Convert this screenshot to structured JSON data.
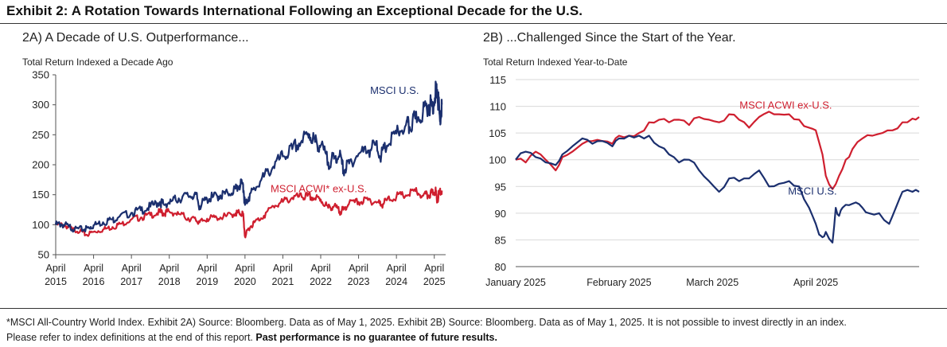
{
  "exhibit_title": "Exhibit 2: A Rotation Towards International Following an Exceptional Decade for the U.S.",
  "footnote": {
    "line1": "*MSCI All-Country World Index. Exhibit 2A) Source: Bloomberg. Data as of May 1, 2025. Exhibit 2B) Source: Bloomberg. Data as of May 1, 2025. It is not possible to invest directly in an index.",
    "line2_plain": "Please refer to index definitions at the end of this report.",
    "line2_bold": "Past performance is no guarantee of future results."
  },
  "colors": {
    "us": "#1b2f6e",
    "intl": "#cf1f2f",
    "axis": "#555555",
    "text": "#222222"
  },
  "chart_data": [
    {
      "type": "line",
      "title": "2A) A Decade of U.S. Outperformance...",
      "ylabel": "Total Return Indexed a Decade Ago",
      "ylim": [
        50,
        350
      ],
      "yticks": [
        50,
        100,
        150,
        200,
        250,
        300,
        350
      ],
      "xlim": [
        2015.25,
        2025.55
      ],
      "xticks": [
        {
          "x": 2015.25,
          "top": "April",
          "bottom": "2015"
        },
        {
          "x": 2016.25,
          "top": "April",
          "bottom": "2016"
        },
        {
          "x": 2017.25,
          "top": "April",
          "bottom": "2017"
        },
        {
          "x": 2018.25,
          "top": "April",
          "bottom": "2018"
        },
        {
          "x": 2019.25,
          "top": "April",
          "bottom": "2019"
        },
        {
          "x": 2020.25,
          "top": "April",
          "bottom": "2020"
        },
        {
          "x": 2021.25,
          "top": "April",
          "bottom": "2021"
        },
        {
          "x": 2022.25,
          "top": "April",
          "bottom": "2022"
        },
        {
          "x": 2023.25,
          "top": "April",
          "bottom": "2023"
        },
        {
          "x": 2024.25,
          "top": "April",
          "bottom": "2024"
        },
        {
          "x": 2025.25,
          "top": "April",
          "bottom": "2025"
        }
      ],
      "series": [
        {
          "name": "MSCI U.S.",
          "color": "#1b2f6e",
          "label_at": [
            2024.2,
            318
          ],
          "x": [
            2015.25,
            2015.4,
            2015.6,
            2015.75,
            2016.0,
            2016.1,
            2016.25,
            2016.5,
            2016.75,
            2016.9,
            2017.25,
            2017.5,
            2017.75,
            2018.0,
            2018.1,
            2018.3,
            2018.5,
            2018.75,
            2018.95,
            2019.05,
            2019.25,
            2019.4,
            2019.6,
            2019.8,
            2020.0,
            2020.1,
            2020.2,
            2020.25,
            2020.35,
            2020.5,
            2020.75,
            2021.0,
            2021.25,
            2021.5,
            2021.75,
            2021.95,
            2022.1,
            2022.25,
            2022.45,
            2022.6,
            2022.75,
            2022.85,
            2023.0,
            2023.25,
            2023.5,
            2023.7,
            2023.85,
            2024.0,
            2024.25,
            2024.5,
            2024.6,
            2024.75,
            2024.95,
            2025.1,
            2025.2,
            2025.28,
            2025.33,
            2025.4,
            2025.45
          ],
          "values": [
            100,
            101,
            97,
            93,
            92,
            95,
            99,
            104,
            109,
            112,
            120,
            124,
            130,
            138,
            134,
            139,
            144,
            148,
            151,
            131,
            143,
            146,
            149,
            152,
            160,
            165,
            167,
            133,
            146,
            160,
            180,
            197,
            214,
            226,
            240,
            251,
            238,
            232,
            204,
            210,
            217,
            190,
            202,
            218,
            224,
            233,
            215,
            232,
            252,
            266,
            263,
            277,
            288,
            300,
            297,
            319,
            325,
            272,
            300
          ]
        },
        {
          "name": "MSCI ACWI* ex-U.S.",
          "color": "#cf1f2f",
          "label_at": [
            2022.2,
            154
          ],
          "x": [
            2015.25,
            2015.5,
            2015.7,
            2015.9,
            2016.05,
            2016.25,
            2016.5,
            2016.75,
            2017.0,
            2017.25,
            2017.5,
            2017.75,
            2018.0,
            2018.1,
            2018.25,
            2018.5,
            2018.75,
            2018.95,
            2019.05,
            2019.25,
            2019.5,
            2019.75,
            2020.0,
            2020.1,
            2020.2,
            2020.25,
            2020.35,
            2020.5,
            2020.75,
            2021.0,
            2021.25,
            2021.5,
            2021.75,
            2021.9,
            2022.1,
            2022.25,
            2022.45,
            2022.6,
            2022.75,
            2022.85,
            2023.0,
            2023.25,
            2023.5,
            2023.75,
            2023.85,
            2024.0,
            2024.25,
            2024.5,
            2024.75,
            2024.95,
            2025.1,
            2025.2,
            2025.28,
            2025.33,
            2025.4,
            2025.45
          ],
          "values": [
            100,
            99,
            92,
            90,
            83,
            88,
            92,
            96,
            102,
            109,
            112,
            116,
            121,
            119,
            122,
            118,
            111,
            108,
            104,
            110,
            112,
            114,
            119,
            120,
            118,
            80,
            94,
            104,
            115,
            131,
            138,
            145,
            146,
            148,
            144,
            142,
            128,
            131,
            122,
            125,
            136,
            138,
            141,
            138,
            133,
            141,
            147,
            149,
            156,
            148,
            149,
            153,
            157,
            141,
            158,
            157
          ]
        }
      ]
    },
    {
      "type": "line",
      "title": "2B) ...Challenged Since the Start of the Year.",
      "ylabel": "Total Return Indexed Year-to-Date",
      "ylim": [
        80,
        115
      ],
      "yticks": [
        80,
        85,
        90,
        95,
        100,
        105,
        110,
        115
      ],
      "xlim": [
        0,
        121
      ],
      "xlabels": [
        {
          "x": 0,
          "text": "January 2025"
        },
        {
          "x": 31,
          "text": "February 2025"
        },
        {
          "x": 59,
          "text": "March 2025"
        },
        {
          "x": 90,
          "text": "April 2025"
        }
      ],
      "series": [
        {
          "name": "MSCI ACWI ex-U.S.",
          "color": "#cf1f2f",
          "label_at": [
            81,
            109.6
          ],
          "x": [
            0,
            3,
            6,
            9,
            12,
            14,
            17,
            20,
            23,
            26,
            29,
            31,
            34,
            37,
            40,
            43,
            46,
            49,
            52,
            55,
            58,
            61,
            64,
            67,
            70,
            73,
            76,
            79,
            82,
            85,
            88,
            90,
            92,
            93,
            95,
            97,
            99,
            101,
            104,
            107,
            110,
            113,
            116,
            119,
            121
          ],
          "values": [
            100,
            99.5,
            101.5,
            100,
            98,
            100.5,
            101.5,
            103,
            103.5,
            103.5,
            103,
            104.5,
            104.5,
            105,
            107,
            107.5,
            107,
            107.5,
            106.5,
            108,
            107.5,
            107,
            108.5,
            107.5,
            106,
            108,
            109,
            108.5,
            108.5,
            107.5,
            106,
            105.5,
            101,
            97,
            94.5,
            97,
            100,
            102,
            104,
            104.5,
            105,
            105.5,
            107,
            107.7,
            108
          ]
        },
        {
          "name": "MSCI U.S.",
          "color": "#1b2f6e",
          "label_at": [
            89,
            93.5
          ],
          "x": [
            0,
            3,
            6,
            9,
            12,
            14,
            17,
            20,
            23,
            26,
            29,
            31,
            34,
            37,
            40,
            43,
            46,
            49,
            52,
            55,
            58,
            61,
            64,
            67,
            70,
            73,
            76,
            79,
            82,
            85,
            88,
            90,
            91,
            92,
            93,
            95,
            96,
            97,
            98,
            100,
            102,
            104,
            106,
            109,
            112,
            114,
            116,
            119,
            121
          ],
          "values": [
            100,
            101.5,
            100.5,
            99.5,
            99,
            101,
            102.5,
            104,
            103,
            103.5,
            102.5,
            104,
            104.5,
            104.5,
            104.5,
            102.5,
            101,
            99.5,
            100,
            98,
            96,
            94,
            96.5,
            96,
            96.5,
            98,
            95,
            95.5,
            96,
            95,
            91,
            88,
            86,
            85.5,
            86.5,
            84.5,
            91,
            89.5,
            91,
            91.5,
            92,
            91,
            90,
            90,
            88,
            91,
            94,
            94,
            94
          ]
        }
      ]
    }
  ]
}
